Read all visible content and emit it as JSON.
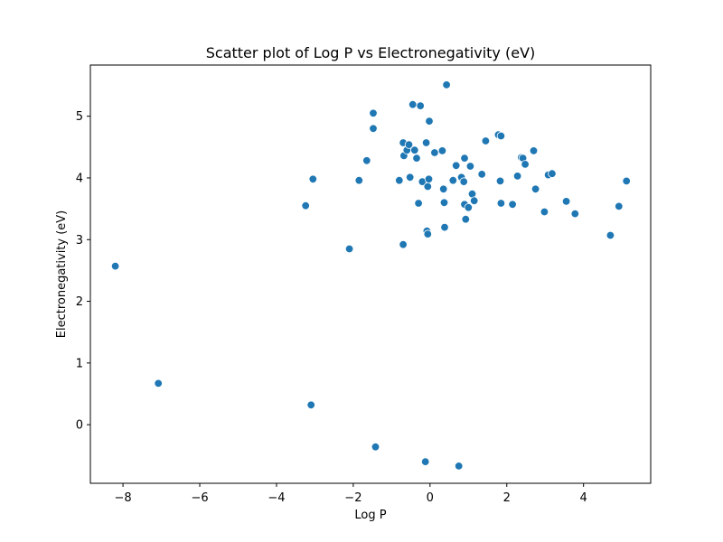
{
  "chart_data": {
    "type": "scatter",
    "title": "Scatter plot of Log P vs Electronegativity (eV)",
    "xlabel": "Log P",
    "ylabel": "Electronegativity (eV)",
    "xlim": [
      -8.85,
      5.75
    ],
    "ylim": [
      -0.95,
      5.83
    ],
    "xticks": [
      -8,
      -6,
      -4,
      -2,
      0,
      2,
      4
    ],
    "yticks": [
      0,
      1,
      2,
      3,
      4,
      5
    ],
    "xtick_labels": [
      "−8",
      "−6",
      "−4",
      "−2",
      "0",
      "2",
      "4"
    ],
    "ytick_labels": [
      "0",
      "1",
      "2",
      "3",
      "4",
      "5"
    ],
    "grid": false,
    "marker_color": "#1f77b4",
    "points": [
      {
        "x": -8.2,
        "y": 2.57
      },
      {
        "x": -7.08,
        "y": 0.67
      },
      {
        "x": -3.24,
        "y": 3.55
      },
      {
        "x": -3.05,
        "y": 3.98
      },
      {
        "x": -3.1,
        "y": 0.32
      },
      {
        "x": -2.1,
        "y": 2.85
      },
      {
        "x": -1.85,
        "y": 3.96
      },
      {
        "x": -1.65,
        "y": 4.28
      },
      {
        "x": -1.48,
        "y": 5.05
      },
      {
        "x": -1.48,
        "y": 4.8
      },
      {
        "x": -1.42,
        "y": -0.36
      },
      {
        "x": -0.8,
        "y": 3.96
      },
      {
        "x": -0.7,
        "y": 4.57
      },
      {
        "x": -0.68,
        "y": 4.36
      },
      {
        "x": -0.7,
        "y": 2.92
      },
      {
        "x": -0.6,
        "y": 4.45
      },
      {
        "x": -0.55,
        "y": 4.54
      },
      {
        "x": -0.52,
        "y": 4.01
      },
      {
        "x": -0.45,
        "y": 5.19
      },
      {
        "x": -0.4,
        "y": 4.45
      },
      {
        "x": -0.35,
        "y": 4.32
      },
      {
        "x": -0.3,
        "y": 3.59
      },
      {
        "x": -0.25,
        "y": 5.17
      },
      {
        "x": -0.2,
        "y": 3.94
      },
      {
        "x": -0.1,
        "y": 4.57
      },
      {
        "x": -0.08,
        "y": 3.14
      },
      {
        "x": -0.06,
        "y": 3.09
      },
      {
        "x": -0.06,
        "y": 3.86
      },
      {
        "x": -0.03,
        "y": 3.98
      },
      {
        "x": -0.02,
        "y": 4.92
      },
      {
        "x": 0.12,
        "y": 4.41
      },
      {
        "x": -0.12,
        "y": -0.6
      },
      {
        "x": 0.32,
        "y": 4.44
      },
      {
        "x": 0.35,
        "y": 3.82
      },
      {
        "x": 0.37,
        "y": 3.6
      },
      {
        "x": 0.38,
        "y": 3.2
      },
      {
        "x": 0.43,
        "y": 5.51
      },
      {
        "x": 0.6,
        "y": 3.96
      },
      {
        "x": 0.68,
        "y": 4.2
      },
      {
        "x": 0.75,
        "y": -0.67
      },
      {
        "x": 0.82,
        "y": 4.01
      },
      {
        "x": 0.88,
        "y": 3.94
      },
      {
        "x": 0.9,
        "y": 4.32
      },
      {
        "x": 0.9,
        "y": 3.57
      },
      {
        "x": 0.93,
        "y": 3.33
      },
      {
        "x": 1.0,
        "y": 3.52
      },
      {
        "x": 1.05,
        "y": 4.19
      },
      {
        "x": 1.1,
        "y": 3.74
      },
      {
        "x": 1.15,
        "y": 3.63
      },
      {
        "x": 1.35,
        "y": 4.06
      },
      {
        "x": 1.45,
        "y": 4.6
      },
      {
        "x": 1.78,
        "y": 4.7
      },
      {
        "x": 1.85,
        "y": 4.68
      },
      {
        "x": 1.83,
        "y": 3.95
      },
      {
        "x": 1.85,
        "y": 3.59
      },
      {
        "x": 2.15,
        "y": 3.57
      },
      {
        "x": 2.28,
        "y": 4.03
      },
      {
        "x": 2.38,
        "y": 4.33
      },
      {
        "x": 2.42,
        "y": 4.32
      },
      {
        "x": 2.48,
        "y": 4.22
      },
      {
        "x": 2.7,
        "y": 4.44
      },
      {
        "x": 2.75,
        "y": 3.82
      },
      {
        "x": 2.98,
        "y": 3.45
      },
      {
        "x": 3.08,
        "y": 4.05
      },
      {
        "x": 3.18,
        "y": 4.07
      },
      {
        "x": 3.55,
        "y": 3.62
      },
      {
        "x": 3.78,
        "y": 3.42
      },
      {
        "x": 4.7,
        "y": 3.07
      },
      {
        "x": 4.92,
        "y": 3.54
      },
      {
        "x": 5.12,
        "y": 3.95
      }
    ]
  }
}
